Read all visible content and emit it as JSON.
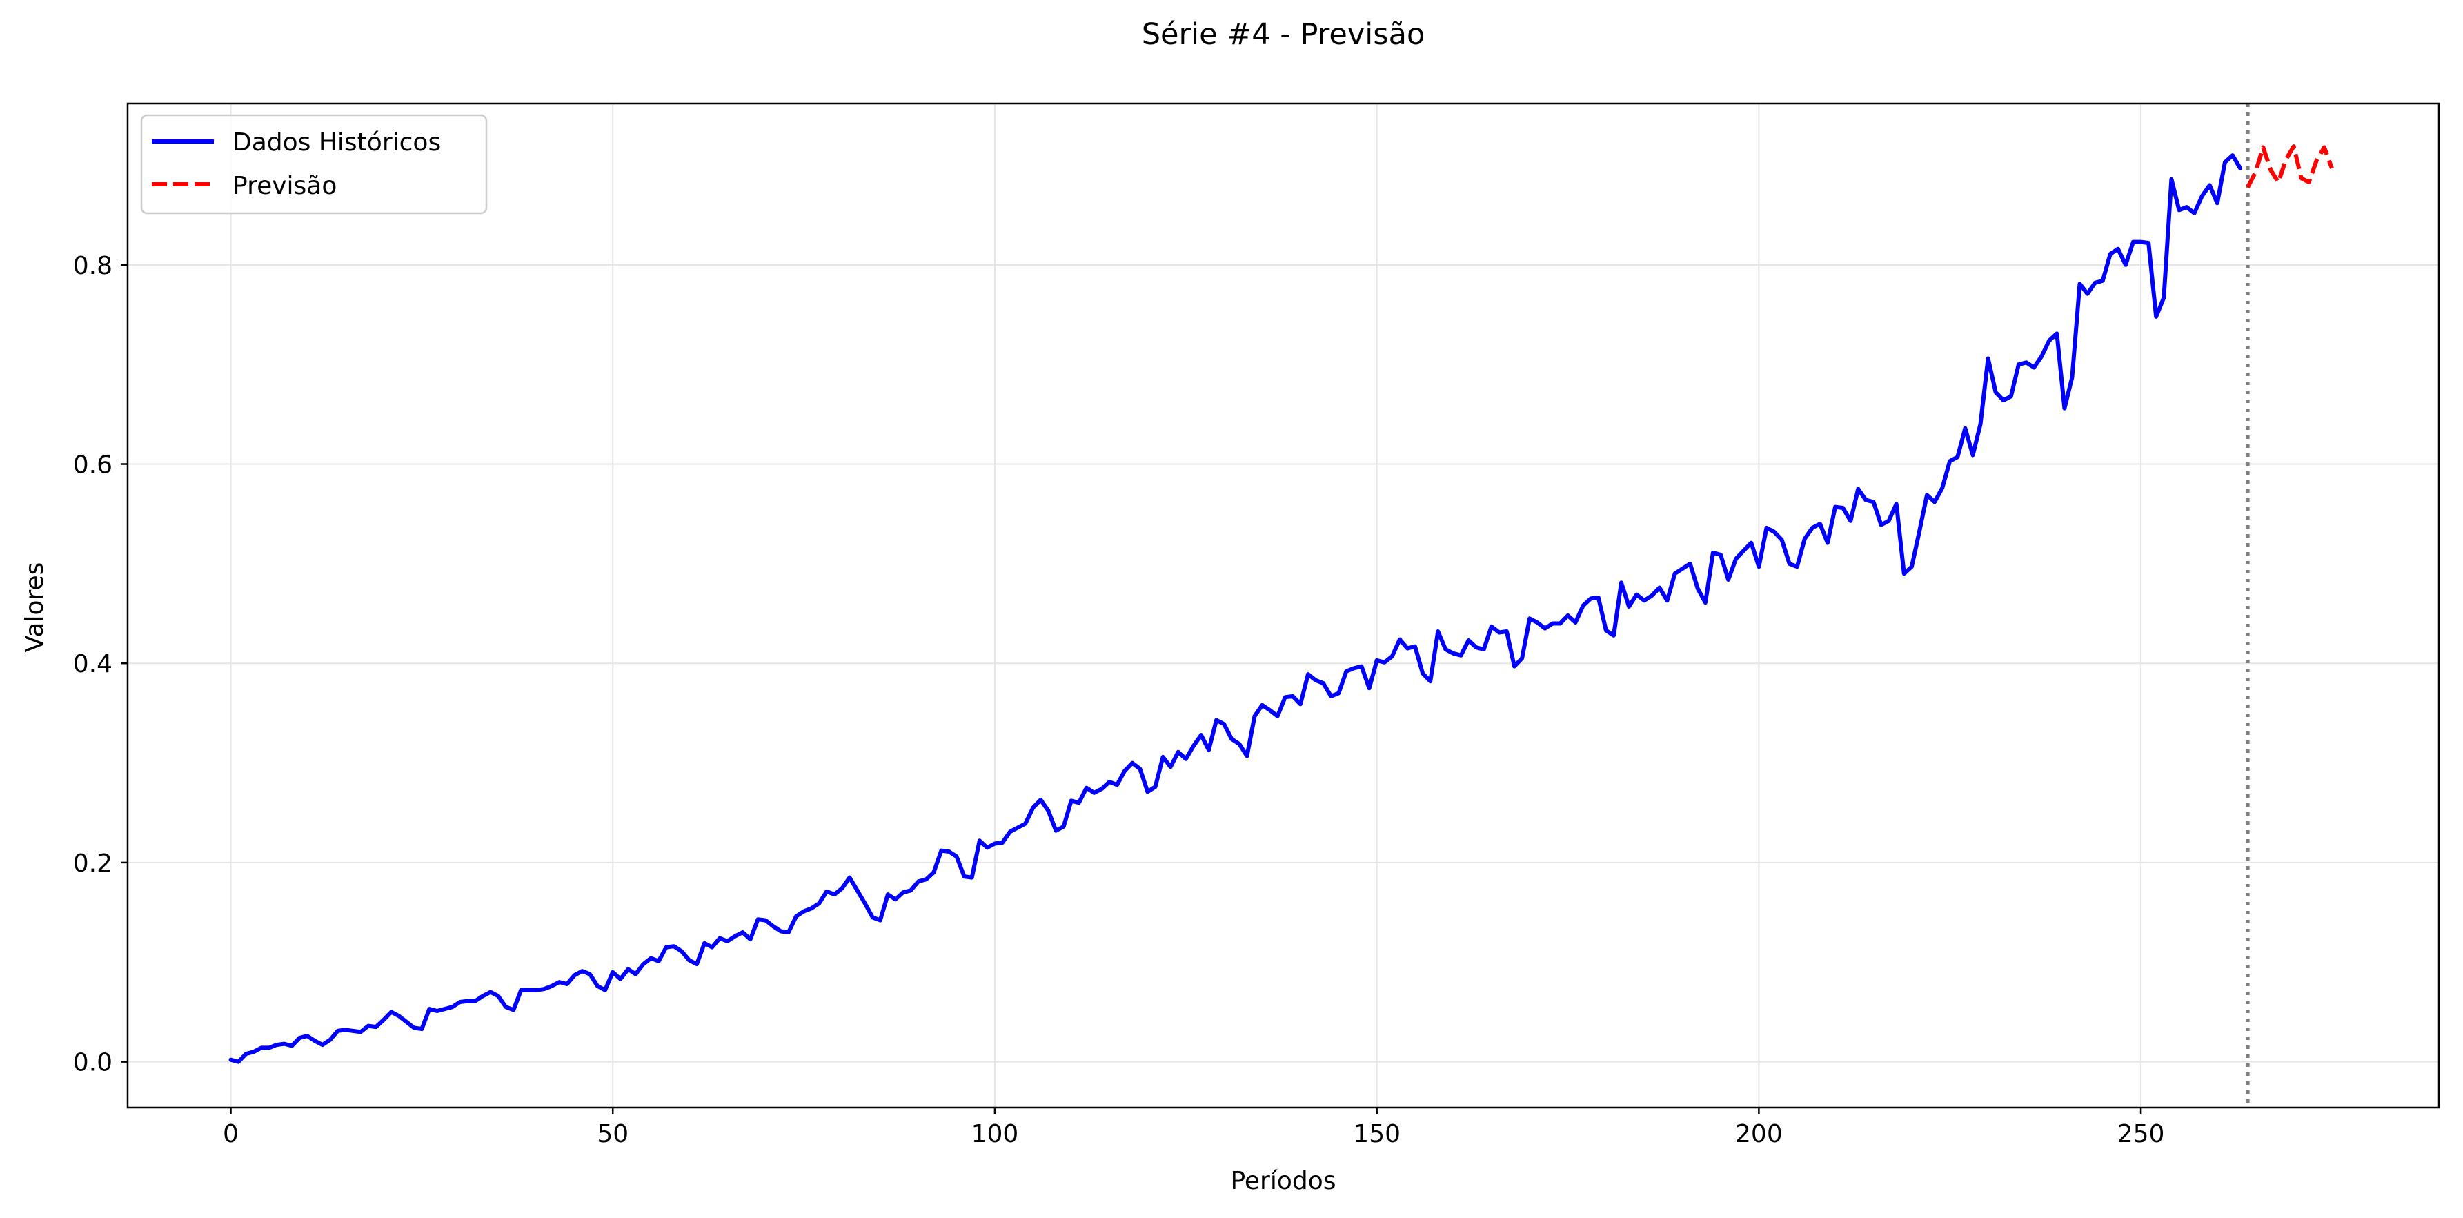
{
  "chart_data": {
    "type": "line",
    "title": "Série #4 - Previsão",
    "xlabel": "Períodos",
    "ylabel": "Valores",
    "xlim": [
      -13.5,
      289
    ],
    "ylim": [
      -0.046,
      0.962
    ],
    "xticks": [
      0,
      50,
      100,
      150,
      200,
      250
    ],
    "yticks": [
      0.0,
      0.2,
      0.4,
      0.6,
      0.8
    ],
    "xtick_labels": [
      "0",
      "50",
      "100",
      "150",
      "200",
      "250"
    ],
    "ytick_labels": [
      "0.0",
      "0.2",
      "0.4",
      "0.6",
      "0.8"
    ],
    "grid": true,
    "legend_position": "upper-left",
    "forecast_start_marker": 264,
    "colors": {
      "historical": "#0000ff",
      "forecast": "#ff0000",
      "divider": "#808080",
      "grid": "#e5e5e5"
    },
    "series": [
      {
        "name": "Dados Históricos",
        "style": "solid",
        "x": [
          0,
          1,
          2,
          3,
          4,
          5,
          6,
          7,
          8,
          9,
          10,
          11,
          12,
          13,
          14,
          15,
          16,
          17,
          18,
          19,
          20,
          21,
          22,
          23,
          24,
          25,
          26,
          27,
          28,
          29,
          30,
          31,
          32,
          33,
          34,
          35,
          36,
          37,
          38,
          39,
          40,
          41,
          42,
          43,
          44,
          45,
          46,
          47,
          48,
          49,
          50,
          51,
          52,
          53,
          54,
          55,
          56,
          57,
          58,
          59,
          60,
          61,
          62,
          63,
          64,
          65,
          66,
          67,
          68,
          69,
          70,
          71,
          72,
          73,
          74,
          75,
          76,
          77,
          78,
          79,
          80,
          81,
          82,
          83,
          84,
          85,
          86,
          87,
          88,
          89,
          90,
          91,
          92,
          93,
          94,
          95,
          96,
          97,
          98,
          99,
          100,
          101,
          102,
          103,
          104,
          105,
          106,
          107,
          108,
          109,
          110,
          111,
          112,
          113,
          114,
          115,
          116,
          117,
          118,
          119,
          120,
          121,
          122,
          123,
          124,
          125,
          126,
          127,
          128,
          129,
          130,
          131,
          132,
          133,
          134,
          135,
          136,
          137,
          138,
          139,
          140,
          141,
          142,
          143,
          144,
          145,
          146,
          147,
          148,
          149,
          150,
          151,
          152,
          153,
          154,
          155,
          156,
          157,
          158,
          159,
          160,
          161,
          162,
          163,
          164,
          165,
          166,
          167,
          168,
          169,
          170,
          171,
          172,
          173,
          174,
          175,
          176,
          177,
          178,
          179,
          180,
          181,
          182,
          183,
          184,
          185,
          186,
          187,
          188,
          189,
          190,
          191,
          192,
          193,
          194,
          195,
          196,
          197,
          198,
          199,
          200,
          201,
          202,
          203,
          204,
          205,
          206,
          207,
          208,
          209,
          210,
          211,
          212,
          213,
          214,
          215,
          216,
          217,
          218,
          219,
          220,
          221,
          222,
          223,
          224,
          225,
          226,
          227,
          228,
          229,
          230,
          231,
          232,
          233,
          234,
          235,
          236,
          237,
          238,
          239,
          240,
          241,
          242,
          243,
          244,
          245,
          246,
          247,
          248,
          249,
          250,
          251,
          252,
          253,
          254,
          255,
          256,
          257,
          258,
          259,
          260,
          261,
          262,
          263
        ],
        "values": [
          0.002,
          0.0,
          0.008,
          0.01,
          0.014,
          0.014,
          0.017,
          0.018,
          0.016,
          0.024,
          0.026,
          0.021,
          0.017,
          0.022,
          0.031,
          0.032,
          0.031,
          0.03,
          0.036,
          0.035,
          0.042,
          0.05,
          0.046,
          0.04,
          0.034,
          0.033,
          0.053,
          0.051,
          0.053,
          0.055,
          0.06,
          0.061,
          0.061,
          0.066,
          0.07,
          0.066,
          0.055,
          0.052,
          0.072,
          0.072,
          0.072,
          0.073,
          0.076,
          0.08,
          0.078,
          0.087,
          0.091,
          0.088,
          0.076,
          0.072,
          0.09,
          0.083,
          0.093,
          0.088,
          0.098,
          0.104,
          0.101,
          0.115,
          0.116,
          0.111,
          0.102,
          0.098,
          0.119,
          0.115,
          0.124,
          0.121,
          0.126,
          0.13,
          0.123,
          0.143,
          0.142,
          0.136,
          0.131,
          0.13,
          0.146,
          0.151,
          0.154,
          0.159,
          0.171,
          0.168,
          0.174,
          0.185,
          0.172,
          0.159,
          0.145,
          0.142,
          0.168,
          0.163,
          0.17,
          0.172,
          0.181,
          0.183,
          0.19,
          0.212,
          0.211,
          0.206,
          0.186,
          0.185,
          0.222,
          0.215,
          0.219,
          0.22,
          0.231,
          0.235,
          0.239,
          0.255,
          0.263,
          0.252,
          0.232,
          0.236,
          0.262,
          0.26,
          0.275,
          0.27,
          0.274,
          0.281,
          0.278,
          0.292,
          0.3,
          0.294,
          0.271,
          0.276,
          0.306,
          0.296,
          0.311,
          0.304,
          0.317,
          0.328,
          0.313,
          0.343,
          0.339,
          0.324,
          0.319,
          0.307,
          0.347,
          0.358,
          0.353,
          0.347,
          0.366,
          0.367,
          0.359,
          0.389,
          0.383,
          0.38,
          0.367,
          0.37,
          0.392,
          0.395,
          0.397,
          0.375,
          0.403,
          0.401,
          0.407,
          0.424,
          0.415,
          0.417,
          0.39,
          0.382,
          0.432,
          0.414,
          0.41,
          0.408,
          0.423,
          0.416,
          0.414,
          0.437,
          0.431,
          0.432,
          0.397,
          0.405,
          0.445,
          0.441,
          0.435,
          0.44,
          0.44,
          0.448,
          0.441,
          0.458,
          0.465,
          0.466,
          0.433,
          0.428,
          0.481,
          0.457,
          0.469,
          0.463,
          0.468,
          0.476,
          0.463,
          0.49,
          0.495,
          0.5,
          0.475,
          0.461,
          0.511,
          0.509,
          0.484,
          0.505,
          0.513,
          0.521,
          0.497,
          0.536,
          0.532,
          0.524,
          0.5,
          0.497,
          0.525,
          0.536,
          0.54,
          0.521,
          0.557,
          0.556,
          0.543,
          0.575,
          0.564,
          0.562,
          0.539,
          0.543,
          0.56,
          0.49,
          0.497,
          0.532,
          0.569,
          0.562,
          0.576,
          0.603,
          0.607,
          0.636,
          0.609,
          0.64,
          0.706,
          0.672,
          0.664,
          0.668,
          0.7,
          0.702,
          0.697,
          0.708,
          0.724,
          0.731,
          0.656,
          0.687,
          0.781,
          0.771,
          0.782,
          0.784,
          0.811,
          0.816,
          0.8,
          0.823,
          0.823,
          0.822,
          0.748,
          0.767,
          0.886,
          0.855,
          0.858,
          0.852,
          0.869,
          0.88,
          0.862,
          0.903,
          0.91,
          0.897
        ]
      },
      {
        "name": "Previsão",
        "style": "dashed",
        "x": [
          264,
          265,
          266,
          267,
          268,
          269,
          270,
          271,
          272,
          273,
          274,
          275
        ],
        "values": [
          0.878,
          0.893,
          0.918,
          0.895,
          0.883,
          0.906,
          0.919,
          0.887,
          0.883,
          0.905,
          0.918,
          0.897
        ]
      }
    ]
  }
}
